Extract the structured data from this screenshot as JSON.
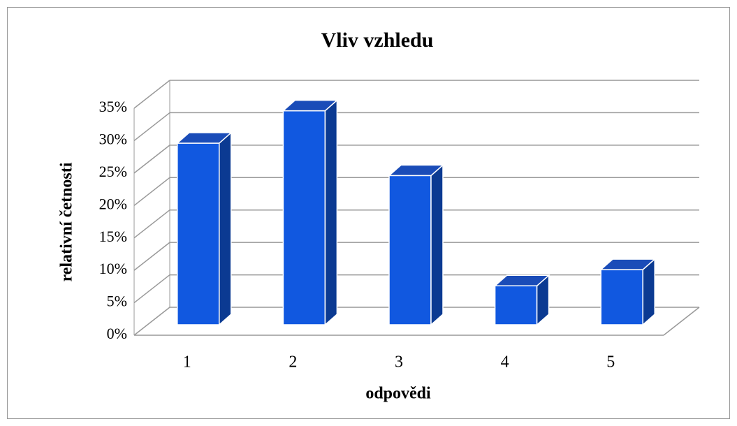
{
  "chart_data": {
    "type": "bar3d",
    "title": "Vliv vzhledu",
    "x_label": "odpovědi",
    "y_label": "relativní četnosti",
    "categories": [
      "1",
      "2",
      "3",
      "4",
      "5"
    ],
    "values": [
      28,
      33,
      23,
      6,
      8.5
    ],
    "color": "#1158e0",
    "ylim": [
      0,
      35
    ],
    "yticks": [
      {
        "value": 0,
        "label": "0%"
      },
      {
        "value": 5,
        "label": "5%"
      },
      {
        "value": 10,
        "label": "10%"
      },
      {
        "value": 15,
        "label": "15%"
      },
      {
        "value": 20,
        "label": "20%"
      },
      {
        "value": 25,
        "label": "25%"
      },
      {
        "value": 30,
        "label": "30%"
      },
      {
        "value": 35,
        "label": "35%"
      }
    ],
    "grid": true
  }
}
